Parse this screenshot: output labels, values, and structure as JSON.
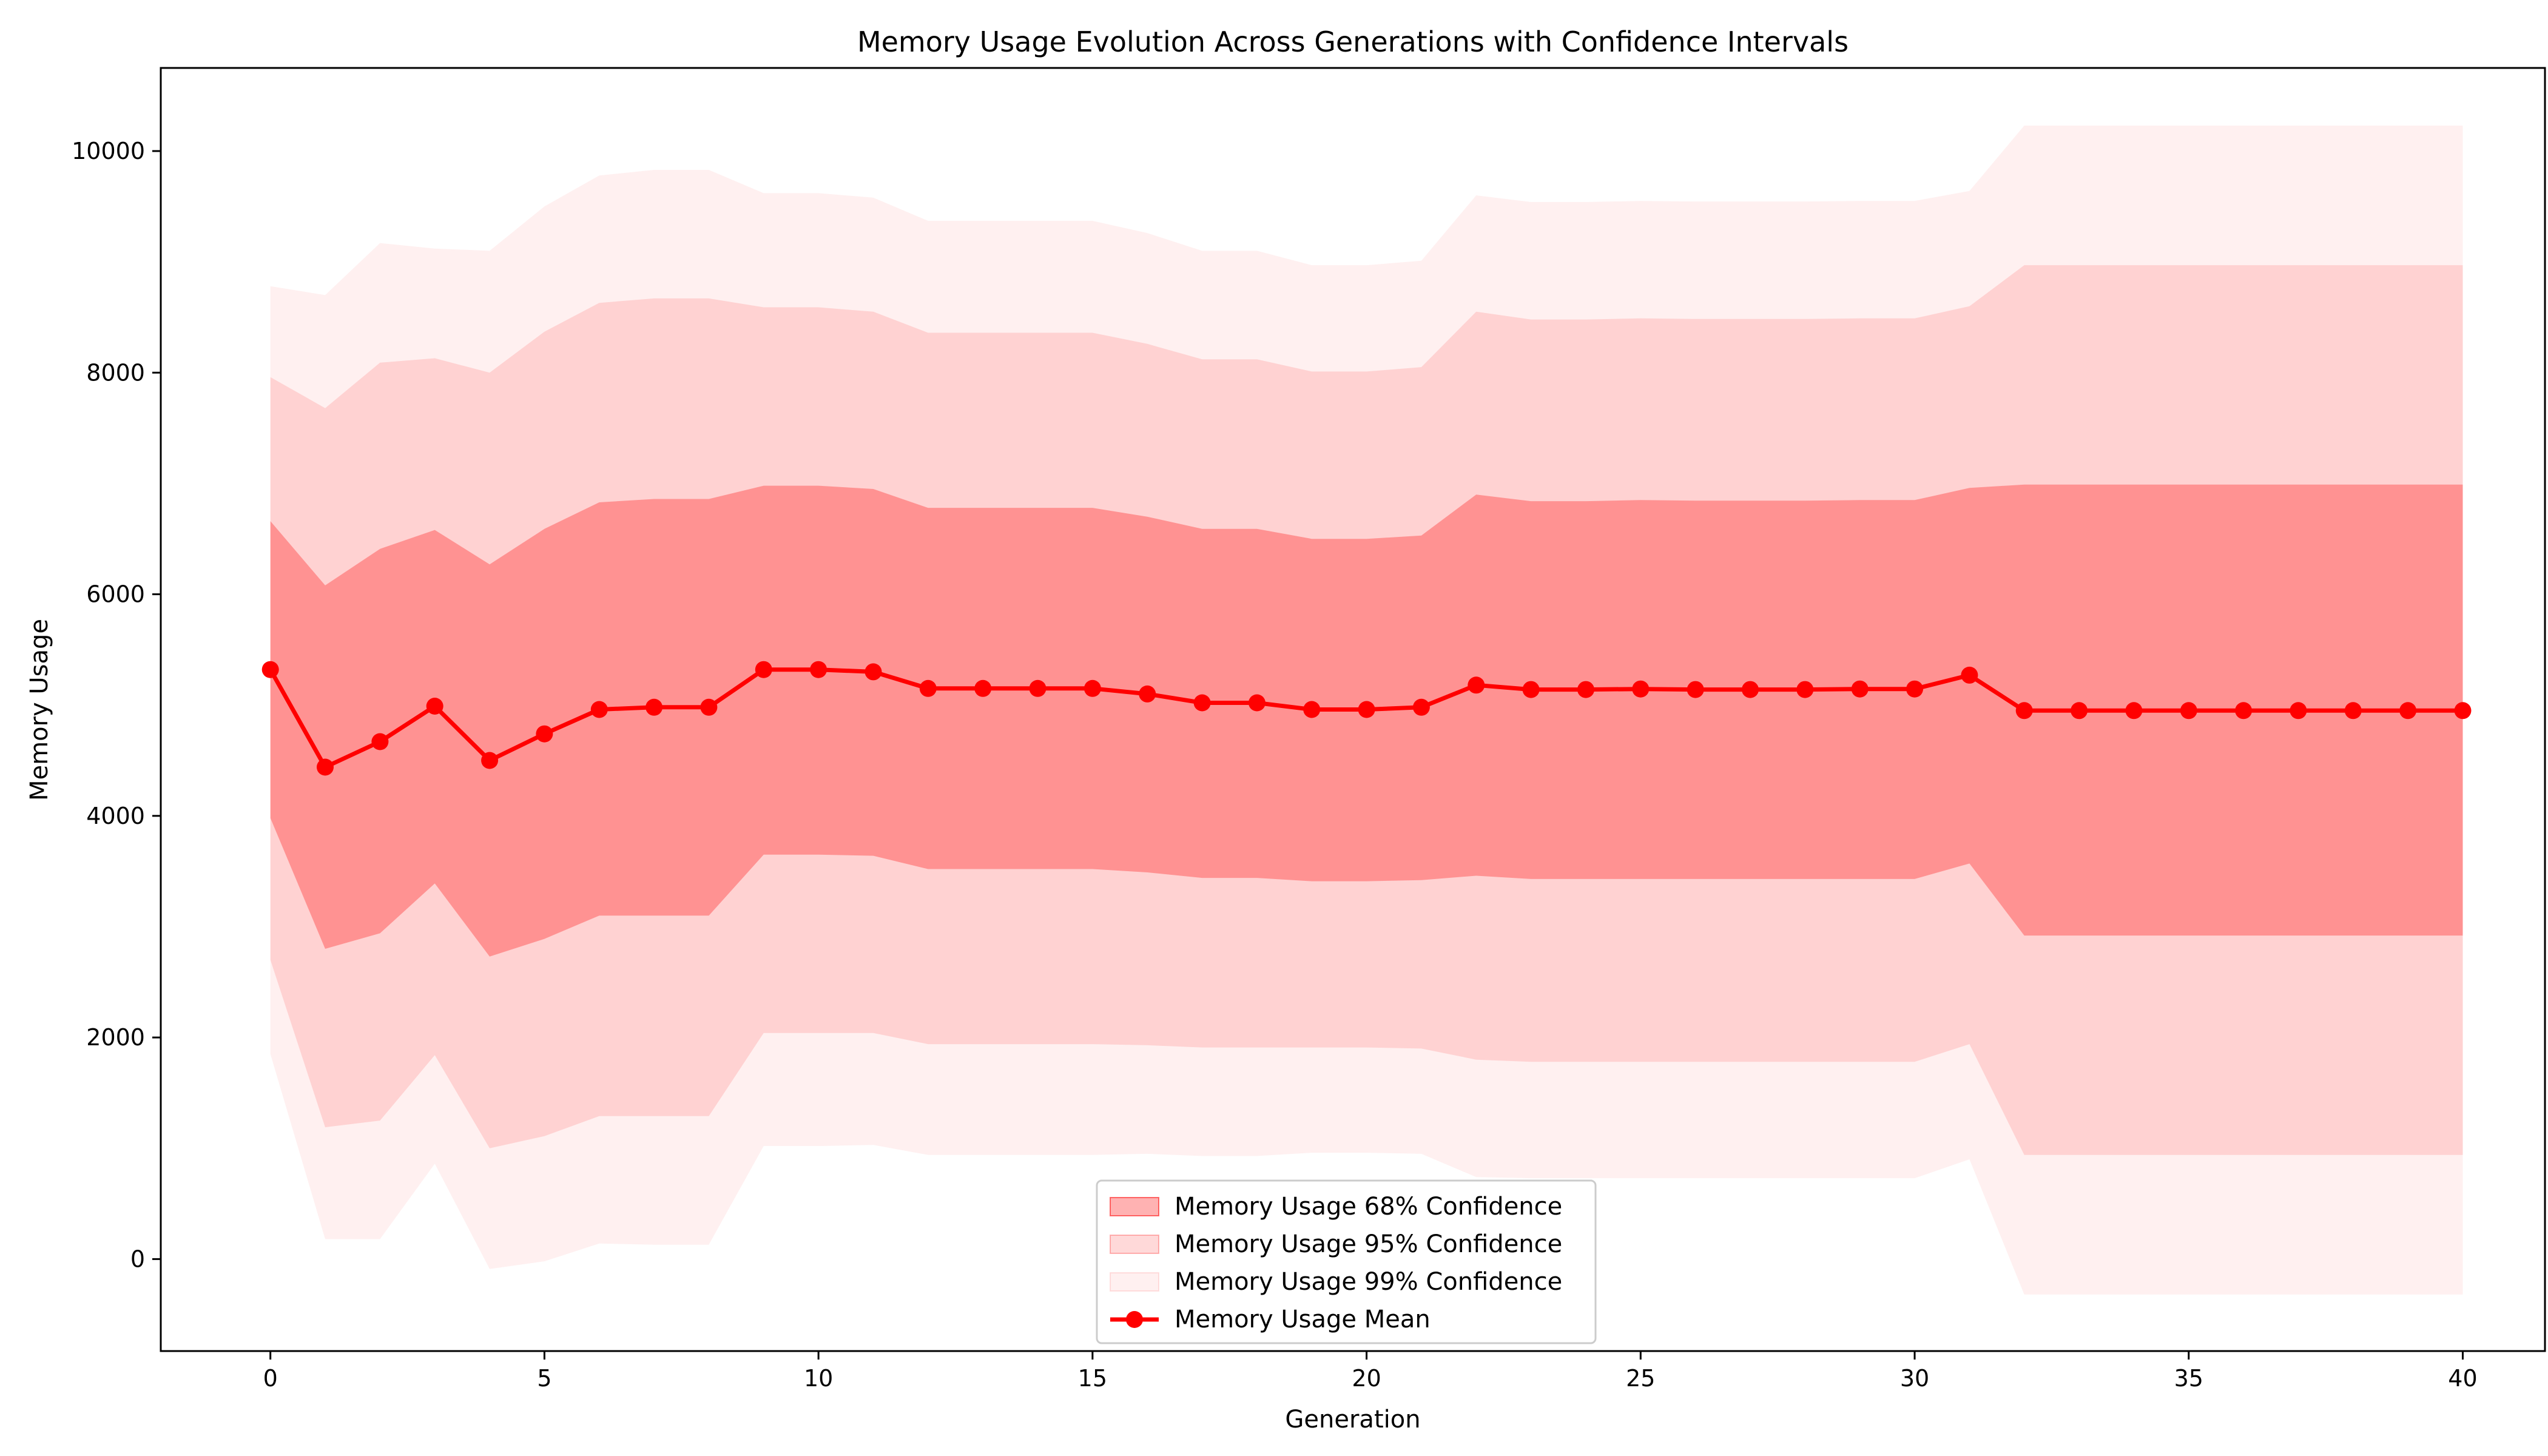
{
  "chart_data": {
    "type": "line",
    "title": "Memory Usage Evolution Across Generations with Confidence Intervals",
    "xlabel": "Generation",
    "ylabel": "Memory Usage",
    "xlim": [
      -2,
      41.5
    ],
    "ylim": [
      -830,
      10750
    ],
    "xticks": [
      0,
      5,
      10,
      15,
      20,
      25,
      30,
      35,
      40
    ],
    "yticks": [
      0,
      2000,
      4000,
      6000,
      8000,
      10000
    ],
    "grid": false,
    "legend_position": "bottom-center",
    "x": [
      0,
      1,
      2,
      3,
      4,
      5,
      6,
      7,
      8,
      9,
      10,
      11,
      12,
      13,
      14,
      15,
      16,
      17,
      18,
      19,
      20,
      21,
      22,
      23,
      24,
      25,
      26,
      27,
      28,
      29,
      30,
      31,
      32,
      33,
      34,
      35,
      36,
      37,
      38,
      39,
      40
    ],
    "mean": {
      "name": "Memory Usage Mean",
      "color": "#ff0000",
      "values": [
        5320,
        4440,
        4670,
        4990,
        4500,
        4740,
        4960,
        4980,
        4980,
        5320,
        5320,
        5300,
        5150,
        5150,
        5150,
        5150,
        5100,
        5020,
        5020,
        4960,
        4960,
        4980,
        5180,
        5140,
        5140,
        5145,
        5140,
        5140,
        5140,
        5145,
        5145,
        5270,
        4950,
        4950,
        4950,
        4950,
        4950,
        4950,
        4950,
        4950,
        4950
      ]
    },
    "bands": [
      {
        "name": "Memory Usage 99% Confidence",
        "color": "#ff0000",
        "opacity": 0.06,
        "lower": [
          1850,
          180,
          180,
          860,
          -90,
          -20,
          140,
          130,
          130,
          1020,
          1020,
          1030,
          940,
          940,
          940,
          940,
          950,
          930,
          930,
          960,
          960,
          950,
          740,
          730,
          730,
          730,
          730,
          730,
          730,
          730,
          730,
          900,
          -320,
          -320,
          -320,
          -320,
          -320,
          -320,
          -320,
          -320,
          -320
        ],
        "upper": [
          8780,
          8700,
          9170,
          9120,
          9100,
          9500,
          9780,
          9830,
          9830,
          9620,
          9620,
          9580,
          9370,
          9370,
          9370,
          9370,
          9260,
          9100,
          9100,
          8970,
          8970,
          9010,
          9600,
          9540,
          9540,
          9550,
          9545,
          9545,
          9545,
          9550,
          9550,
          9640,
          10230,
          10230,
          10230,
          10230,
          10230,
          10230,
          10230,
          10230,
          10230
        ]
      },
      {
        "name": "Memory Usage 95% Confidence",
        "color": "#ff0000",
        "opacity": 0.12,
        "lower": [
          2700,
          1190,
          1250,
          1840,
          1000,
          1110,
          1290,
          1290,
          1290,
          2040,
          2040,
          2040,
          1940,
          1940,
          1940,
          1940,
          1930,
          1910,
          1910,
          1910,
          1910,
          1900,
          1800,
          1780,
          1780,
          1780,
          1780,
          1780,
          1780,
          1780,
          1780,
          1940,
          940,
          940,
          940,
          940,
          940,
          940,
          940,
          940,
          940
        ],
        "upper": [
          7960,
          7680,
          8090,
          8130,
          8000,
          8370,
          8630,
          8670,
          8670,
          8590,
          8590,
          8550,
          8360,
          8360,
          8360,
          8360,
          8260,
          8120,
          8120,
          8010,
          8010,
          8050,
          8550,
          8480,
          8480,
          8490,
          8485,
          8485,
          8485,
          8490,
          8490,
          8600,
          8970,
          8970,
          8970,
          8970,
          8970,
          8970,
          8970,
          8970,
          8970
        ]
      },
      {
        "name": "Memory Usage 68% Confidence",
        "color": "#ff0000",
        "opacity": 0.3,
        "lower": [
          3980,
          2800,
          2940,
          3390,
          2730,
          2890,
          3100,
          3100,
          3100,
          3650,
          3650,
          3640,
          3520,
          3520,
          3520,
          3520,
          3490,
          3440,
          3440,
          3410,
          3410,
          3420,
          3460,
          3430,
          3430,
          3430,
          3430,
          3430,
          3430,
          3430,
          3430,
          3570,
          2920,
          2920,
          2920,
          2920,
          2920,
          2920,
          2920,
          2920,
          2920
        ],
        "upper": [
          6660,
          6080,
          6410,
          6580,
          6270,
          6590,
          6830,
          6860,
          6860,
          6980,
          6980,
          6950,
          6780,
          6780,
          6780,
          6780,
          6700,
          6590,
          6590,
          6500,
          6500,
          6530,
          6900,
          6840,
          6840,
          6850,
          6845,
          6845,
          6845,
          6850,
          6850,
          6960,
          6990,
          6990,
          6990,
          6990,
          6990,
          6990,
          6990,
          6990,
          6990
        ]
      }
    ],
    "legend": [
      {
        "label": "Memory Usage 68% Confidence",
        "kind": "patch",
        "opacity": 0.3
      },
      {
        "label": "Memory Usage 95% Confidence",
        "kind": "patch",
        "opacity": 0.15
      },
      {
        "label": "Memory Usage 99% Confidence",
        "kind": "patch",
        "opacity": 0.06
      },
      {
        "label": "Memory Usage Mean",
        "kind": "line"
      }
    ]
  }
}
